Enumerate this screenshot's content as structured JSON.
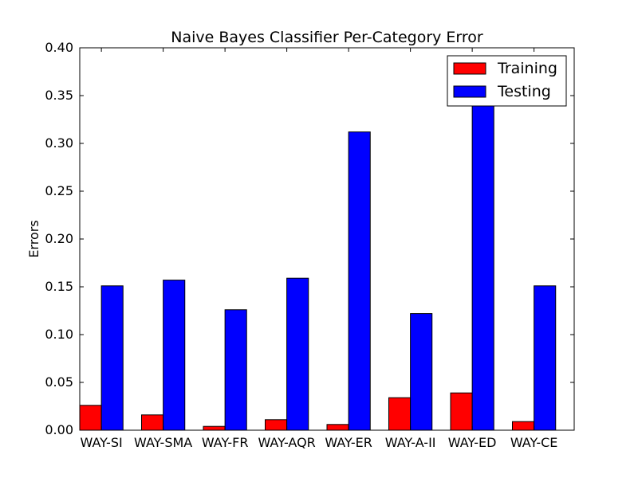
{
  "chart_data": {
    "type": "bar",
    "title": "Naive Bayes Classifier Per-Category Error",
    "xlabel": "",
    "ylabel": "Errors",
    "ylim": [
      0,
      0.4
    ],
    "yticks": [
      "0.00",
      "0.05",
      "0.10",
      "0.15",
      "0.20",
      "0.25",
      "0.30",
      "0.35",
      "0.40"
    ],
    "categories": [
      "WAY-SI",
      "WAY-SMA",
      "WAY-FR",
      "WAY-AQR",
      "WAY-ER",
      "WAY-A-II",
      "WAY-ED",
      "WAY-CE"
    ],
    "series": [
      {
        "name": "Training",
        "color": "#ff0000",
        "values": [
          0.026,
          0.016,
          0.004,
          0.011,
          0.006,
          0.034,
          0.039,
          0.009
        ]
      },
      {
        "name": "Testing",
        "color": "#0000ff",
        "values": [
          0.151,
          0.157,
          0.126,
          0.159,
          0.312,
          0.122,
          0.342,
          0.151
        ]
      }
    ],
    "legend_position": "top-right",
    "grid": false
  }
}
